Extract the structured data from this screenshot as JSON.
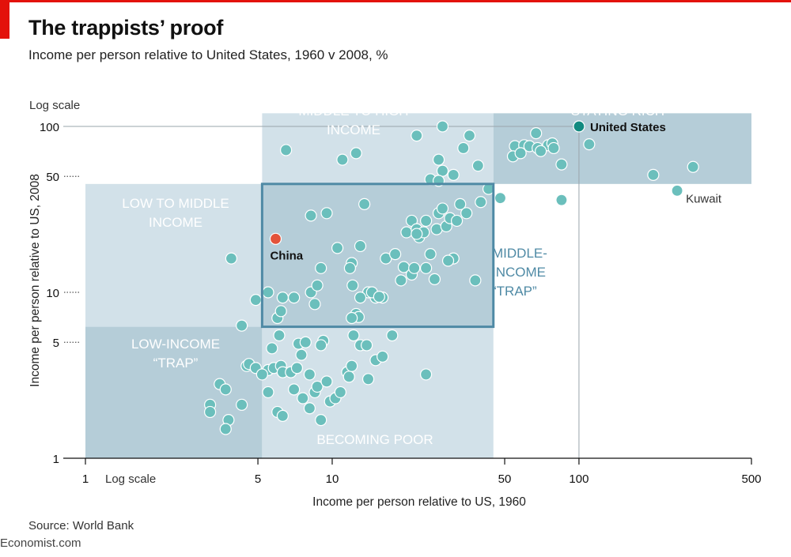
{
  "header": {
    "title": "The trappists’ proof",
    "subtitle": "Income per person relative to United States, 1960 v 2008, %"
  },
  "footer": {
    "source": "Source: World Bank",
    "brand": "Economist.com"
  },
  "colors": {
    "accent_red": "#e3120b",
    "dot_default": "#6bbfbc",
    "dot_china": "#e3533a",
    "dot_us": "#128a80",
    "zone_light": "#d2e1e9",
    "zone_dark": "#b5cdd8",
    "trap_border": "#4f8aa5"
  },
  "chart_data": {
    "type": "scatter",
    "title": "The trappists’ proof",
    "xlabel": "Income per person relative to US, 1960",
    "ylabel": "Income per person relative to US, 2008",
    "xscale": "log",
    "yscale": "log",
    "xlim": [
      1,
      500
    ],
    "ylim": [
      1,
      100
    ],
    "x_ticks": [
      1,
      5,
      10,
      50,
      100,
      500
    ],
    "y_ticks": [
      1,
      5,
      10,
      50,
      100
    ],
    "x_scale_note": "Log scale",
    "y_scale_note": "Log scale",
    "reference_line": {
      "x": 100,
      "y": 100
    },
    "zones": [
      {
        "name": "Low to middle income",
        "label_lines": [
          "LOW TO MIDDLE",
          "INCOME"
        ],
        "x_range": [
          1,
          5.2
        ],
        "y_range": [
          6.2,
          45
        ],
        "shade": "light"
      },
      {
        "name": "Low-income trap",
        "label_lines": [
          "LOW-INCOME",
          "“TRAP”"
        ],
        "x_range": [
          1,
          5.2
        ],
        "y_range": [
          1,
          6.2
        ],
        "shade": "dark"
      },
      {
        "name": "Middle to high income",
        "label_lines": [
          "MIDDLE TO HIGH",
          "INCOME"
        ],
        "x_range": [
          5.2,
          45
        ],
        "y_range": [
          45,
          120
        ],
        "shade": "light"
      },
      {
        "name": "Staying rich",
        "label_lines": [
          "STAYING RICH"
        ],
        "x_range": [
          45,
          500
        ],
        "y_range": [
          45,
          120
        ],
        "shade": "dark"
      },
      {
        "name": "Becoming poor",
        "label_lines": [
          "BECOMING POOR"
        ],
        "x_range": [
          5.2,
          45
        ],
        "y_range": [
          1,
          6.2
        ],
        "shade": "light"
      },
      {
        "name": "Middle-income trap",
        "label_lines": [
          "MIDDLE-",
          "INCOME",
          "“TRAP”"
        ],
        "x_range": [
          5.2,
          45
        ],
        "y_range": [
          6.2,
          45
        ],
        "shade": "dark",
        "outlined": true
      }
    ],
    "highlighted": [
      {
        "name": "United States",
        "x": 100,
        "y": 100,
        "role": "us"
      },
      {
        "name": "China",
        "x": 5.9,
        "y": 21,
        "role": "china"
      },
      {
        "name": "Kuwait",
        "x": 250,
        "y": 41,
        "role": "plain"
      }
    ],
    "points": [
      [
        6.5,
        72
      ],
      [
        11,
        63
      ],
      [
        12.5,
        69
      ],
      [
        22,
        88
      ],
      [
        28,
        100
      ],
      [
        36,
        88
      ],
      [
        27,
        63
      ],
      [
        34,
        74
      ],
      [
        39,
        58
      ],
      [
        25,
        48
      ],
      [
        28,
        54
      ],
      [
        31,
        51
      ],
      [
        27,
        47
      ],
      [
        55,
        76
      ],
      [
        60,
        77
      ],
      [
        63,
        76
      ],
      [
        68,
        74
      ],
      [
        75,
        77
      ],
      [
        78,
        79
      ],
      [
        79,
        74
      ],
      [
        67,
        91
      ],
      [
        70,
        71
      ],
      [
        54,
        66
      ],
      [
        58,
        69
      ],
      [
        85,
        59
      ],
      [
        110,
        78
      ],
      [
        200,
        51
      ],
      [
        290,
        57
      ],
      [
        43,
        42
      ],
      [
        40,
        35
      ],
      [
        48,
        37
      ],
      [
        85,
        36
      ],
      [
        3.9,
        16
      ],
      [
        4.9,
        9
      ],
      [
        5.5,
        10
      ],
      [
        6.3,
        9.3
      ],
      [
        7,
        9.3
      ],
      [
        8.2,
        10
      ],
      [
        8.5,
        8.5
      ],
      [
        8.7,
        11
      ],
      [
        9,
        14
      ],
      [
        8.2,
        29
      ],
      [
        9.5,
        30
      ],
      [
        12,
        15
      ],
      [
        11.8,
        14
      ],
      [
        12.1,
        11
      ],
      [
        13,
        19
      ],
      [
        13.5,
        34
      ],
      [
        14,
        10
      ],
      [
        15,
        9.3
      ],
      [
        16,
        9.3
      ],
      [
        16.5,
        16
      ],
      [
        18,
        17
      ],
      [
        19,
        11.8
      ],
      [
        19.5,
        14.2
      ],
      [
        21,
        12.8
      ],
      [
        20,
        23
      ],
      [
        21,
        27
      ],
      [
        22,
        24
      ],
      [
        22.5,
        21.5
      ],
      [
        23.5,
        23
      ],
      [
        22,
        22.5
      ],
      [
        24,
        14
      ],
      [
        25,
        17
      ],
      [
        26,
        12
      ],
      [
        26.5,
        24
      ],
      [
        27,
        30
      ],
      [
        28,
        32
      ],
      [
        29,
        25
      ],
      [
        30,
        28
      ],
      [
        31,
        16
      ],
      [
        29.5,
        15.5
      ],
      [
        32,
        27
      ],
      [
        33,
        34
      ],
      [
        35,
        30
      ],
      [
        24,
        27
      ],
      [
        38,
        11.8
      ],
      [
        21.5,
        14
      ],
      [
        14.5,
        10
      ],
      [
        15.5,
        9.4
      ],
      [
        12.5,
        7.4
      ],
      [
        12.8,
        7.1
      ],
      [
        12,
        7
      ],
      [
        13,
        9.3
      ],
      [
        10.5,
        18.5
      ],
      [
        6,
        7
      ],
      [
        6.2,
        7.7
      ],
      [
        4.3,
        6.3
      ],
      [
        6.1,
        5.5
      ],
      [
        5.7,
        4.6
      ],
      [
        5.5,
        3.4
      ],
      [
        5.8,
        3.5
      ],
      [
        6.2,
        3.6
      ],
      [
        6.3,
        3.3
      ],
      [
        6.8,
        3.3
      ],
      [
        7.2,
        3.5
      ],
      [
        7.3,
        4.9
      ],
      [
        7.5,
        4.2
      ],
      [
        7.8,
        5
      ],
      [
        8.1,
        3.2
      ],
      [
        8.5,
        2.5
      ],
      [
        8.7,
        2.7
      ],
      [
        9.2,
        5.1
      ],
      [
        9,
        4.8
      ],
      [
        9.5,
        2.9
      ],
      [
        9.8,
        2.2
      ],
      [
        10.3,
        2.3
      ],
      [
        10.8,
        2.5
      ],
      [
        11.5,
        3.3
      ],
      [
        11.7,
        3.1
      ],
      [
        12,
        3.6
      ],
      [
        13,
        4.8
      ],
      [
        14,
        3
      ],
      [
        15,
        3.9
      ],
      [
        16,
        4.1
      ],
      [
        17.5,
        5.5
      ],
      [
        12.2,
        5.5
      ],
      [
        13.8,
        4.8
      ],
      [
        3.2,
        2.1
      ],
      [
        3.5,
        2.8
      ],
      [
        3.7,
        2.6
      ],
      [
        4.3,
        2.1
      ],
      [
        4.5,
        3.6
      ],
      [
        4.6,
        3.7
      ],
      [
        4.9,
        3.5
      ],
      [
        5.2,
        3.2
      ],
      [
        5.5,
        2.5
      ],
      [
        6,
        1.9
      ],
      [
        6.3,
        1.8
      ],
      [
        7,
        2.6
      ],
      [
        7.6,
        2.3
      ],
      [
        8.1,
        2
      ],
      [
        9,
        1.7
      ],
      [
        3.8,
        1.7
      ],
      [
        3.7,
        1.5
      ],
      [
        3.2,
        1.9
      ],
      [
        24,
        3.2
      ]
    ]
  }
}
